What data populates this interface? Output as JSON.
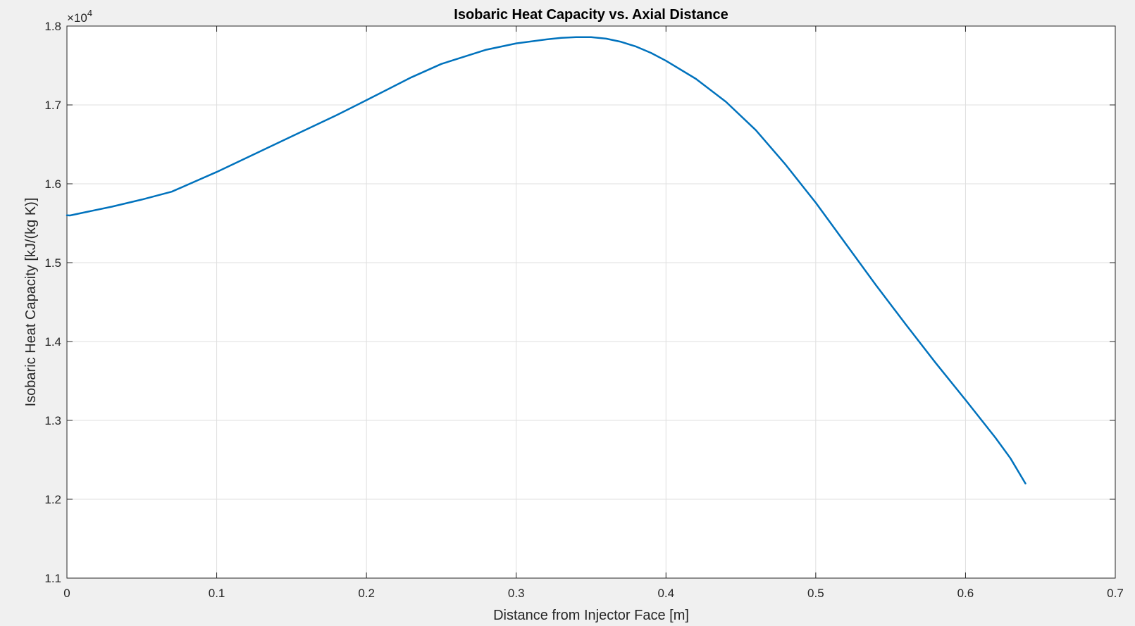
{
  "chart_data": {
    "type": "line",
    "title": "Isobaric Heat Capacity vs. Axial Distance",
    "xlabel": "Distance from Injector Face [m]",
    "ylabel": "Isobaric Heat Capacity [kJ/(kg K)]",
    "y_exponent_label": {
      "base": "×10",
      "power": "4"
    },
    "xlim": [
      0,
      0.7
    ],
    "ylim": [
      1.1,
      1.8
    ],
    "xticks": [
      0,
      0.1,
      0.2,
      0.3,
      0.4,
      0.5,
      0.6,
      0.7
    ],
    "xtick_labels": [
      "0",
      "0.1",
      "0.2",
      "0.3",
      "0.4",
      "0.5",
      "0.6",
      "0.7"
    ],
    "yticks": [
      1.1,
      1.2,
      1.3,
      1.4,
      1.5,
      1.6,
      1.7,
      1.8
    ],
    "ytick_labels": [
      "1.1",
      "1.2",
      "1.3",
      "1.4",
      "1.5",
      "1.6",
      "1.7",
      "1.8"
    ],
    "grid": true,
    "series": [
      {
        "color": "#0072bd",
        "x": [
          0,
          0.002,
          0.01,
          0.03,
          0.05,
          0.07,
          0.1,
          0.13,
          0.15,
          0.18,
          0.2,
          0.23,
          0.25,
          0.28,
          0.3,
          0.32,
          0.33,
          0.34,
          0.35,
          0.36,
          0.37,
          0.38,
          0.39,
          0.4,
          0.42,
          0.44,
          0.46,
          0.48,
          0.5,
          0.52,
          0.54,
          0.56,
          0.58,
          0.6,
          0.62,
          0.63,
          0.64
        ],
        "y": [
          1.56,
          1.5598,
          1.563,
          1.571,
          1.58,
          1.59,
          1.615,
          1.642,
          1.66,
          1.687,
          1.706,
          1.735,
          1.752,
          1.77,
          1.778,
          1.783,
          1.785,
          1.786,
          1.786,
          1.784,
          1.78,
          1.774,
          1.766,
          1.756,
          1.733,
          1.704,
          1.668,
          1.624,
          1.576,
          1.524,
          1.472,
          1.422,
          1.373,
          1.326,
          1.278,
          1.252,
          1.22
        ]
      }
    ]
  }
}
